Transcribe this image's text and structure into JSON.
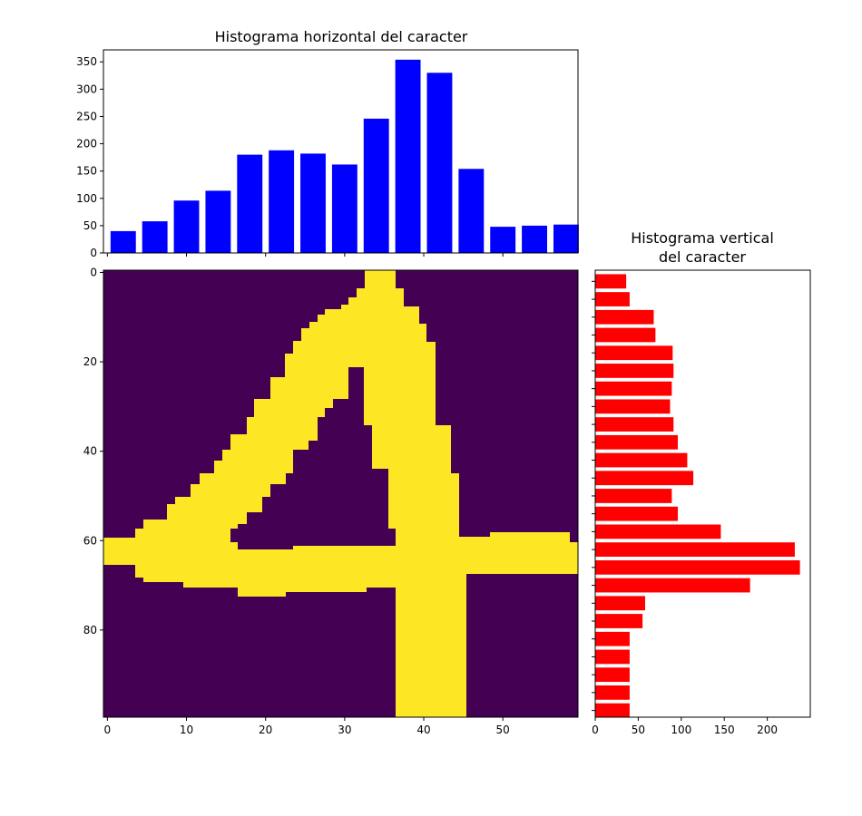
{
  "chart_data": [
    {
      "id": "horizontal",
      "type": "bar",
      "title": "Histograma horizontal del caracter",
      "orientation": "vertical-bars",
      "color": "#0000ff",
      "x": [
        2,
        6,
        10,
        14,
        18,
        22,
        26,
        30,
        34,
        38,
        42,
        46,
        50,
        54,
        58
      ],
      "values": [
        40,
        58,
        96,
        114,
        180,
        188,
        182,
        162,
        246,
        354,
        330,
        154,
        48,
        50,
        52
      ],
      "xlim": [
        -0.5,
        59.5
      ],
      "ylim": [
        0,
        372
      ],
      "yticks": [
        0,
        50,
        100,
        150,
        200,
        250,
        300,
        350
      ],
      "xticks": [
        0,
        10,
        20,
        30,
        40,
        50
      ],
      "xtick_labels_visible": false
    },
    {
      "id": "image",
      "type": "heatmap",
      "colors": {
        "background": "#440154",
        "stroke": "#fde725"
      },
      "xlim": [
        -0.5,
        59.5
      ],
      "ylim": [
        99.5,
        -0.5
      ],
      "xticks": [
        0,
        10,
        20,
        30,
        40,
        50
      ],
      "yticks": [
        0,
        20,
        40,
        60,
        80
      ]
    },
    {
      "id": "vertical",
      "type": "bar",
      "title": "Histograma vertical del caracter",
      "title_lines": [
        "Histograma vertical",
        "del caracter"
      ],
      "orientation": "horizontal-bars",
      "color": "#ff0000",
      "y": [
        2,
        6,
        10,
        14,
        18,
        22,
        26,
        30,
        34,
        38,
        42,
        46,
        50,
        54,
        58,
        62,
        66,
        70,
        74,
        78,
        82,
        86,
        90,
        94,
        98
      ],
      "values": [
        36,
        40,
        68,
        70,
        90,
        91,
        89,
        87,
        91,
        96,
        107,
        114,
        89,
        96,
        146,
        232,
        238,
        180,
        58,
        55,
        40,
        40,
        40,
        40,
        40
      ],
      "xlim": [
        0,
        250
      ],
      "xticks": [
        0,
        50,
        100,
        150,
        200
      ],
      "ylim": [
        99.5,
        -0.5
      ],
      "yticks": [
        0,
        20,
        40,
        60,
        80
      ],
      "ytick_labels_visible": false
    }
  ]
}
